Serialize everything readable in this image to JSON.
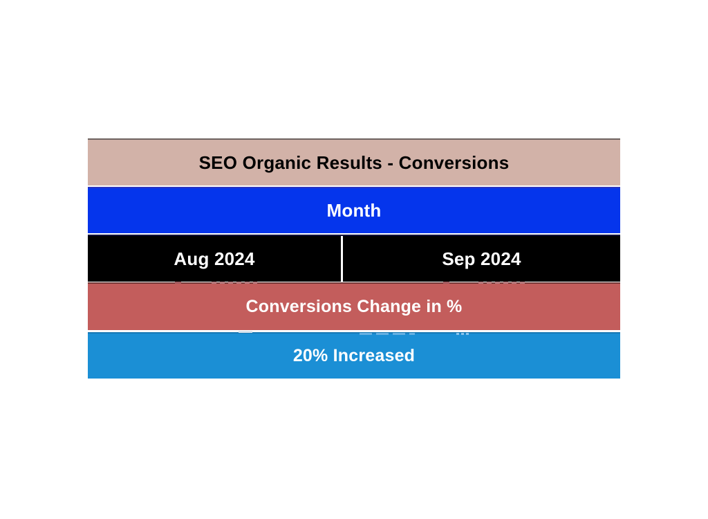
{
  "page": {
    "background_color": "#ffffff"
  },
  "table": {
    "rows": [
      {
        "id": "title",
        "label": "SEO Organic Results - Conversions",
        "bg": "#d2b2a8",
        "border_top": "#6e6360",
        "text_color": "#000000"
      },
      {
        "id": "month-header",
        "label": "Month",
        "bg": "#0535ec",
        "border_top": "#2b35c0",
        "text_color": "#ffffff"
      },
      {
        "id": "months",
        "cells": [
          "Aug 2024",
          "Sep 2024"
        ],
        "bg": "#000000",
        "border_top": "#12123b",
        "divider_color": "#ffffff",
        "text_color": "#ffffff"
      },
      {
        "id": "change-header",
        "label": "Conversions Change in %",
        "bg": "#c35d5c",
        "border_top": "#713635",
        "text_color": "#ffffff"
      },
      {
        "id": "result",
        "label": "20% Increased",
        "bg": "#1b8fd5",
        "border_top": "#1877b3",
        "text_color": "#ffffff"
      }
    ]
  }
}
